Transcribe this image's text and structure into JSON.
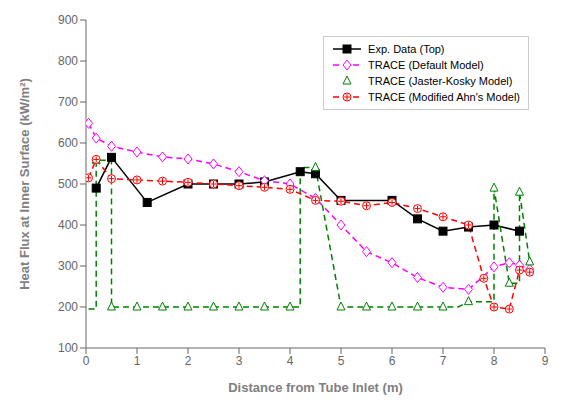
{
  "chart_data": {
    "type": "line",
    "xlabel": "Distance from Tube Inlet (m)",
    "ylabel": "Heat Flux at Inner Surface (kW/m²)",
    "xlim": [
      0,
      9
    ],
    "ylim": [
      100,
      900
    ],
    "xticks": [
      0,
      1,
      2,
      3,
      4,
      5,
      6,
      7,
      8,
      9
    ],
    "yticks": [
      100,
      200,
      300,
      400,
      500,
      600,
      700,
      800,
      900
    ],
    "grid": false,
    "legend": "upper right",
    "series": [
      {
        "name": "Exp. Data (Top)",
        "color": "#000000",
        "line_style": "solid",
        "marker": "square",
        "x": [
          0.2,
          0.5,
          1.2,
          2.0,
          2.5,
          3.0,
          3.5,
          4.2,
          4.5,
          5.0,
          6.0,
          6.5,
          7.0,
          7.5,
          8.0,
          8.5
        ],
        "values": [
          490,
          565,
          455,
          500,
          500,
          500,
          505,
          530,
          525,
          460,
          460,
          415,
          385,
          395,
          400,
          385
        ]
      },
      {
        "name": "TRACE (Default Model)",
        "color": "#ff00ff",
        "line_style": "dashed",
        "marker": "diamond",
        "x": [
          0.05,
          0.2,
          0.5,
          1.0,
          1.5,
          2.0,
          2.5,
          3.0,
          3.5,
          4.0,
          4.5,
          5.0,
          5.5,
          6.0,
          6.5,
          7.0,
          7.5,
          8.0,
          8.3,
          8.5,
          8.7
        ],
        "values": [
          648,
          612,
          592,
          578,
          566,
          561,
          549,
          530,
          508,
          500,
          465,
          400,
          335,
          308,
          272,
          248,
          243,
          298,
          308,
          302,
          292
        ]
      },
      {
        "color": "#008000",
        "line_style": "dashed",
        "marker": "none",
        "x": [
          0.05,
          0.2,
          0.2,
          0.5,
          0.5,
          1.0,
          1.5,
          2.0,
          2.5,
          3.0,
          3.5,
          4.0,
          4.2,
          4.2,
          4.5,
          5.0,
          5.5,
          6.0,
          6.5,
          7.0,
          7.3,
          7.5,
          8.0,
          8.0,
          8.3,
          8.5,
          8.5,
          8.7
        ],
        "values": [
          195,
          195,
          558,
          558,
          200,
          200,
          200,
          200,
          200,
          200,
          200,
          200,
          200,
          540,
          540,
          200,
          200,
          200,
          200,
          200,
          200,
          213,
          213,
          490,
          258,
          258,
          480,
          310
        ]
      },
      {
        "name": "TRACE (Jaster-Kosky Model)",
        "color": "#008000",
        "line_style": "none",
        "marker": "triangle",
        "x": [
          0.2,
          0.5,
          1.0,
          1.5,
          2.0,
          2.5,
          3.0,
          3.5,
          4.0,
          4.5,
          5.0,
          5.5,
          6.0,
          6.5,
          7.0,
          7.5,
          8.0,
          8.3,
          8.5,
          8.7
        ],
        "values": [
          558,
          200,
          200,
          200,
          200,
          200,
          200,
          200,
          200,
          540,
          200,
          200,
          200,
          200,
          200,
          213,
          490,
          258,
          480,
          310
        ]
      },
      {
        "name": "TRACE (Modified Ahn's Model)",
        "color": "#ff0000",
        "line_style": "dashed",
        "marker": "circle_plus",
        "x": [
          0.05,
          0.2,
          0.5,
          1.0,
          1.5,
          2.0,
          2.5,
          3.0,
          3.5,
          4.0,
          4.5,
          5.0,
          5.5,
          6.0,
          6.5,
          7.0,
          7.5,
          7.8,
          8.0,
          8.3,
          8.5,
          8.7
        ],
        "values": [
          515,
          560,
          513,
          510,
          507,
          504,
          500,
          496,
          492,
          487,
          460,
          458,
          447,
          455,
          440,
          420,
          400,
          270,
          200,
          195,
          290,
          285
        ]
      }
    ]
  }
}
